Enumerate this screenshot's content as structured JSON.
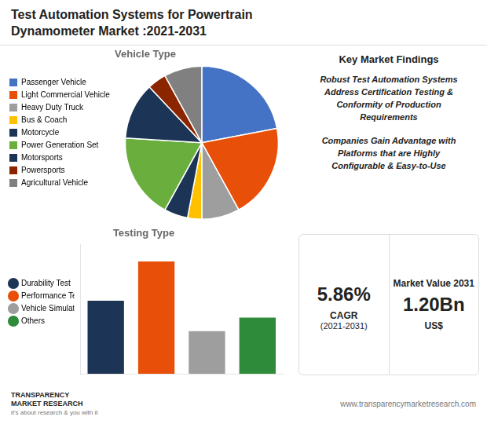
{
  "title": "Test Automation Systems for Powertrain\nDynamometer Market :2021-2031",
  "annotations": [
    "Key Market Findings",
    "Robust Test Automation Systems\nAddress Certification Testing &\nConformity of Production\nRequirements",
    "Companies Gain Advantage with\nPlatforms that are Highly\nConfigurable & Easy-to-Use",
    "5.86%",
    "CAGR",
    "(2021-2031)",
    "Market Value 2031",
    "1.20Bn",
    "US$",
    "TRANSPARENCY",
    "MARKET RESEARCH",
    "it's about research & you with it",
    "www.transparencymarketresearch.com"
  ],
  "chart_data": [
    {
      "type": "pie",
      "title": "Vehicle Type",
      "categories": [
        "Passenger Vehicle",
        "Light Commercial Vehicle",
        "Heavy Duty Truck",
        "Bus & Coach",
        "Motorcycle",
        "Power Generation Set",
        "Motorsports",
        "Powersports",
        "Agricultural Vehicle"
      ],
      "values": [
        22,
        20,
        8,
        3,
        5,
        18,
        12,
        4,
        8
      ],
      "colors": [
        "#4472C4",
        "#E8500A",
        "#9E9E9E",
        "#FFC000",
        "#1C3557",
        "#6AAF3D",
        "#1C3557",
        "#8B2500",
        "#808080"
      ],
      "legend": "left"
    },
    {
      "type": "bar",
      "title": "Testing Type",
      "categories": [
        "Durability Test",
        "Performance Test",
        "Vehicle Simulation",
        "Others"
      ],
      "values": [
        65,
        100,
        38,
        50
      ],
      "colors": [
        "#1C3557",
        "#E8500A",
        "#9E9E9E",
        "#2E8B3A"
      ],
      "ylim": [
        0,
        115
      ],
      "tick_labels": false,
      "grid": false,
      "legend": "left"
    }
  ]
}
